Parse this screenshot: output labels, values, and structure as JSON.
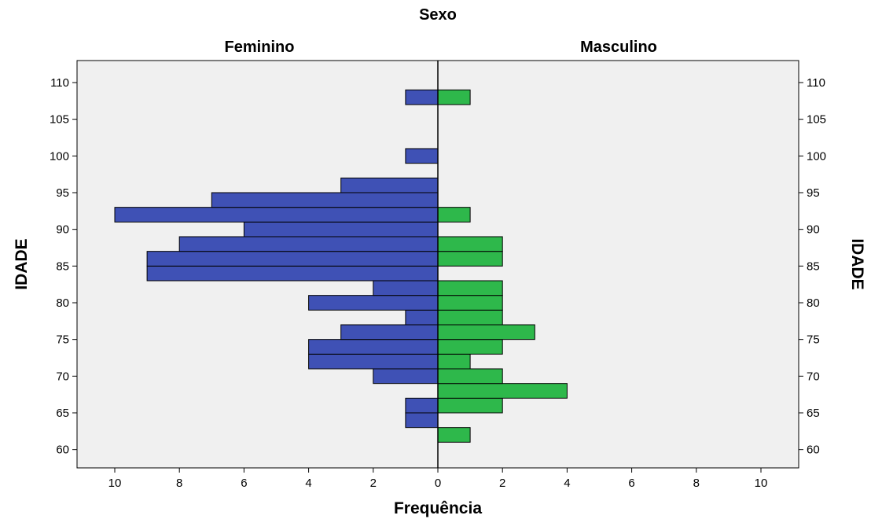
{
  "chart_data": {
    "type": "bar",
    "title": "Sexo",
    "panels": [
      "Feminino",
      "Masculino"
    ],
    "xlabel": "Frequência",
    "ylabel_left": "IDADE",
    "ylabel_right": "IDADE",
    "xlim": [
      0,
      10
    ],
    "x_ticks": [
      10,
      8,
      6,
      4,
      2,
      0,
      2,
      4,
      6,
      8,
      10
    ],
    "y_ticks": [
      60,
      65,
      70,
      75,
      80,
      85,
      90,
      95,
      100,
      105,
      110
    ],
    "ylim": [
      57.5,
      113
    ],
    "bin_width": 2,
    "bins": [
      62,
      64,
      66,
      68,
      70,
      72,
      74,
      76,
      78,
      80,
      82,
      84,
      86,
      88,
      90,
      92,
      94,
      96,
      98,
      100,
      102,
      104,
      106,
      108,
      110
    ],
    "series": [
      {
        "name": "Feminino",
        "color": "#3F51B5",
        "values": [
          0,
          1,
          1,
          0,
          2,
          4,
          4,
          3,
          1,
          4,
          2,
          9,
          9,
          8,
          6,
          10,
          7,
          3,
          0,
          1,
          0,
          0,
          0,
          1,
          0
        ]
      },
      {
        "name": "Masculino",
        "color": "#2EB84B",
        "values": [
          1,
          0,
          2,
          4,
          2,
          1,
          2,
          3,
          2,
          2,
          2,
          0,
          2,
          2,
          0,
          1,
          0,
          0,
          0,
          0,
          0,
          0,
          0,
          1,
          0
        ]
      }
    ],
    "plot_background": "#F0F0F0",
    "grid": false
  }
}
